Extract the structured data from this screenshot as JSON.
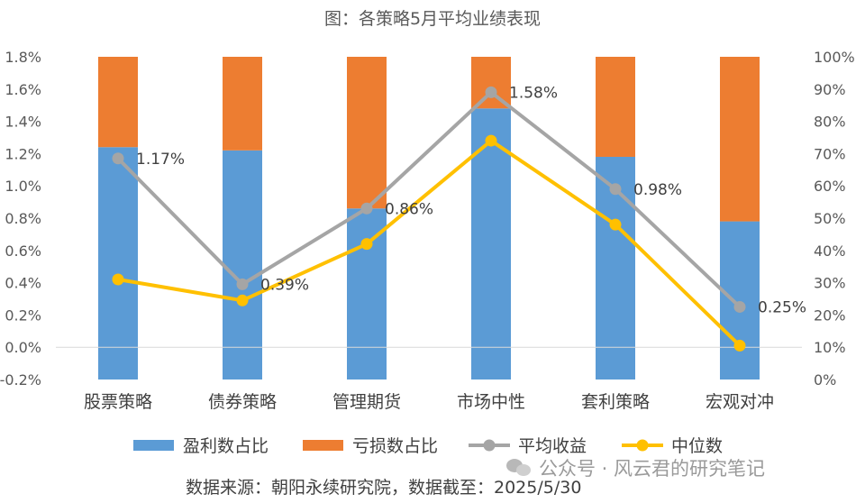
{
  "title": "图：各策略5月平均业绩表现",
  "source": "数据来源：朝阳永续研究院，数据截至：2025/5/30",
  "watermark": "公众号 · 风云君的研究笔记",
  "watermark_icon": "wechat-icon",
  "chart_data": {
    "type": "bar",
    "categories": [
      "股票策略",
      "债券策略",
      "管理期货",
      "市场中性",
      "套利策略",
      "宏观对冲"
    ],
    "stacked_bars": [
      {
        "name": "盈利数占比",
        "color": "#5b9bd5",
        "values": [
          72,
          71,
          53,
          84,
          69,
          49
        ]
      },
      {
        "name": "亏损数占比",
        "color": "#ed7d31",
        "values": [
          28,
          29,
          47,
          16,
          31,
          51
        ]
      }
    ],
    "lines": [
      {
        "name": "平均收益",
        "color": "#a5a5a5",
        "values": [
          1.17,
          0.39,
          0.86,
          1.58,
          0.98,
          0.25
        ],
        "labels": [
          "1.17%",
          "0.39%",
          "0.86%",
          "1.58%",
          "0.98%",
          "0.25%"
        ]
      },
      {
        "name": "中位数",
        "color": "#ffc000",
        "values": [
          0.42,
          0.29,
          0.64,
          1.28,
          0.76,
          0.01
        ]
      }
    ],
    "y_left": {
      "min": -0.2,
      "max": 1.8,
      "ticks": [
        "1.8%",
        "1.6%",
        "1.4%",
        "1.2%",
        "1.0%",
        "0.8%",
        "0.6%",
        "0.4%",
        "0.2%",
        "0.0%",
        "-0.2%"
      ]
    },
    "y_right": {
      "min": 0,
      "max": 100,
      "ticks": [
        "100%",
        "90%",
        "80%",
        "70%",
        "60%",
        "50%",
        "40%",
        "30%",
        "20%",
        "10%",
        "0%"
      ]
    },
    "legend": [
      "盈利数占比",
      "亏损数占比",
      "平均收益",
      "中位数"
    ],
    "legend_position": "bottom",
    "grid": false
  }
}
